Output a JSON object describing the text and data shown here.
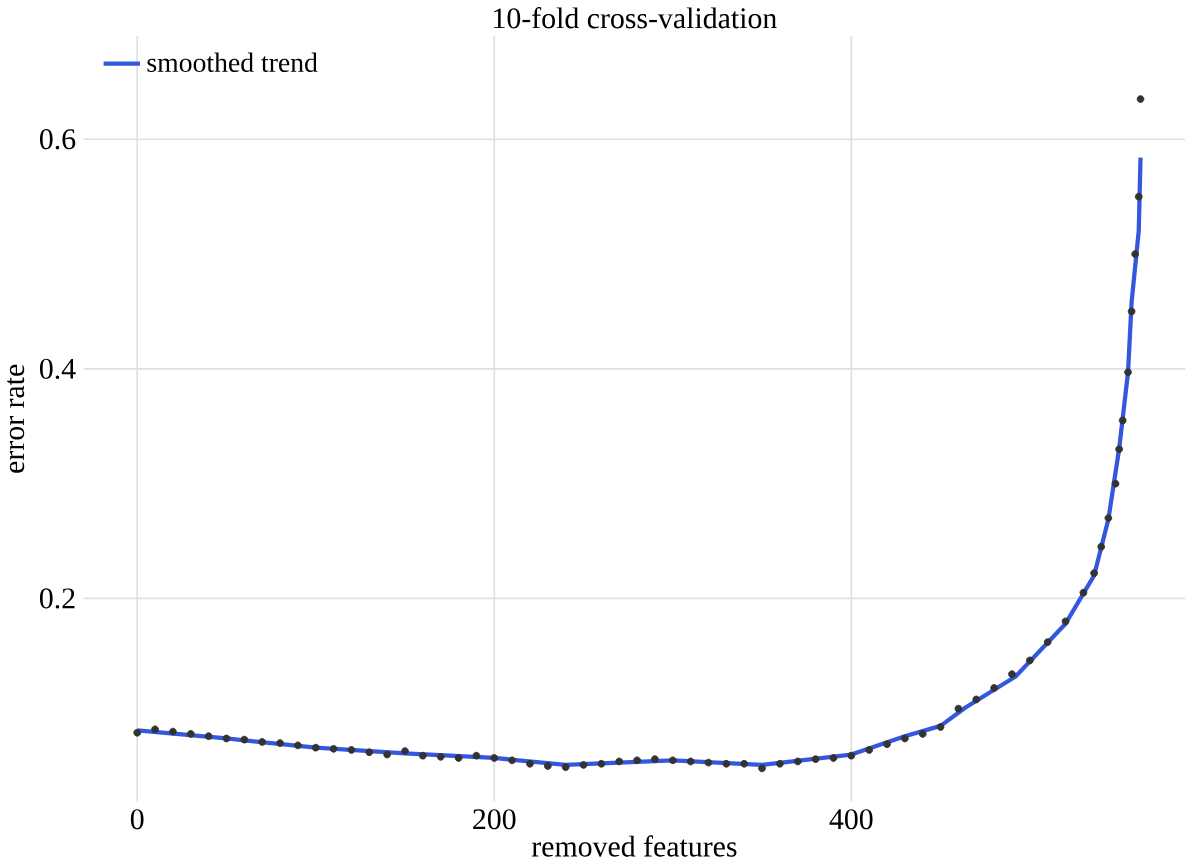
{
  "chart_data": {
    "type": "scatter",
    "title": "10-fold cross-validation",
    "xlabel": "removed features",
    "ylabel": "error rate",
    "xlim": [
      -30,
      587
    ],
    "ylim": [
      0.023,
      0.69
    ],
    "xticks": [
      0,
      200,
      400
    ],
    "yticks": [
      0.2,
      0.4,
      0.6
    ],
    "grid": true,
    "legend": "top left",
    "marker": "circle",
    "series": [
      {
        "color": "#333333",
        "x": [
          0,
          10,
          20,
          30,
          40,
          50,
          60,
          70,
          80,
          90,
          100,
          110,
          120,
          130,
          140,
          150,
          160,
          170,
          180,
          190,
          200,
          210,
          220,
          230,
          240,
          250,
          260,
          270,
          280,
          290,
          300,
          310,
          320,
          330,
          340,
          350,
          360,
          370,
          380,
          390,
          400,
          410,
          420,
          430,
          440,
          450,
          460,
          470,
          480,
          490,
          500,
          510,
          520,
          530,
          536,
          540,
          544,
          548,
          550,
          552,
          555,
          557,
          559,
          561,
          562
        ],
        "values": [
          0.083,
          0.086,
          0.084,
          0.082,
          0.08,
          0.078,
          0.077,
          0.075,
          0.074,
          0.072,
          0.07,
          0.069,
          0.068,
          0.066,
          0.064,
          0.067,
          0.063,
          0.062,
          0.061,
          0.063,
          0.061,
          0.059,
          0.056,
          0.054,
          0.053,
          0.055,
          0.056,
          0.058,
          0.059,
          0.06,
          0.059,
          0.058,
          0.057,
          0.056,
          0.056,
          0.052,
          0.056,
          0.058,
          0.06,
          0.061,
          0.063,
          0.068,
          0.073,
          0.078,
          0.082,
          0.088,
          0.104,
          0.112,
          0.122,
          0.134,
          0.146,
          0.162,
          0.18,
          0.205,
          0.222,
          0.245,
          0.27,
          0.3,
          0.33,
          0.355,
          0.397,
          0.45,
          0.5,
          0.55,
          0.635
        ]
      },
      {
        "type": "line",
        "name": "smoothed trend",
        "color": "#3357dd",
        "marker": "none",
        "line_style": "solid",
        "x": [
          0,
          50,
          100,
          150,
          200,
          240,
          300,
          350,
          400,
          430,
          450,
          464,
          492,
          520,
          536,
          544,
          550,
          555,
          557,
          561,
          562
        ],
        "values": [
          0.085,
          0.078,
          0.07,
          0.065,
          0.061,
          0.055,
          0.059,
          0.055,
          0.064,
          0.08,
          0.089,
          0.105,
          0.132,
          0.178,
          0.22,
          0.269,
          0.33,
          0.397,
          0.458,
          0.52,
          0.584
        ]
      }
    ]
  }
}
